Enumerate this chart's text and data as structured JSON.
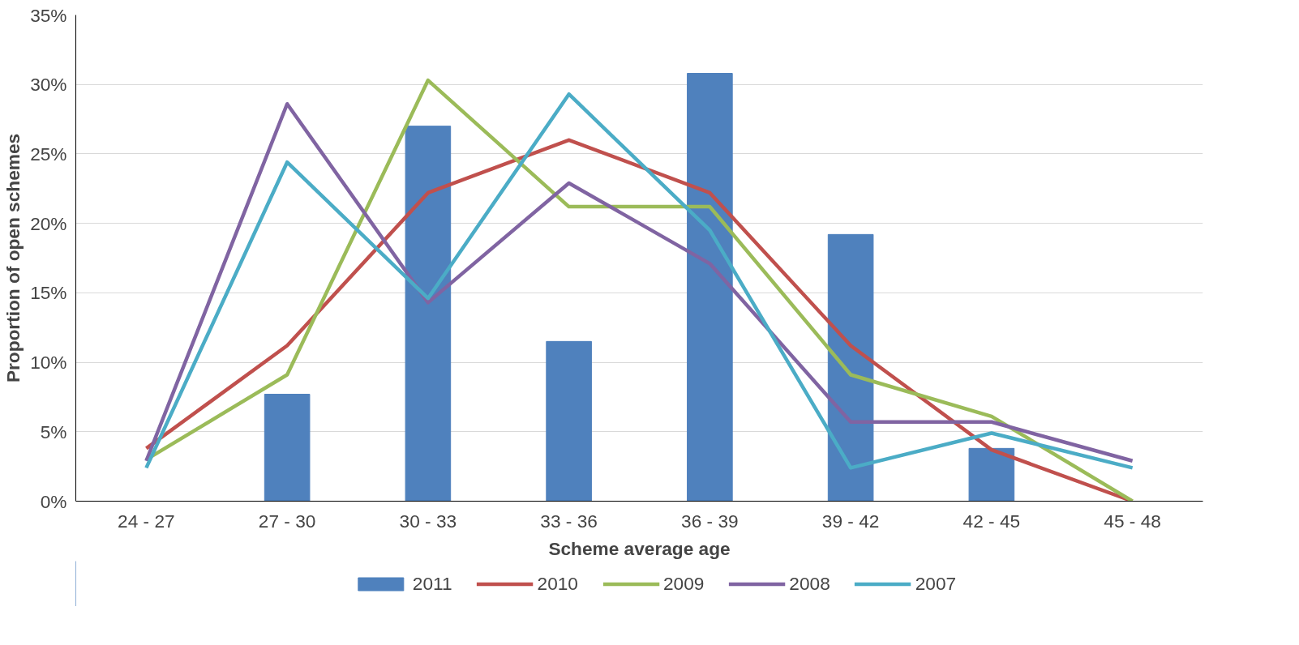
{
  "chart_data": {
    "type": "bar",
    "xlabel": "Scheme average age",
    "ylabel": "Proportion of open schemes",
    "categories": [
      "24 - 27",
      "27 - 30",
      "30 - 33",
      "33 - 36",
      "36 - 39",
      "39 - 42",
      "42 - 45",
      "45 - 48"
    ],
    "series": [
      {
        "name": "2011",
        "color": "#4f81bd",
        "values": [
          0,
          7.7,
          27.0,
          11.5,
          30.8,
          19.2,
          3.8,
          0
        ]
      },
      {
        "name": "2010",
        "type": "line",
        "color": "#c0504d",
        "values": [
          3.8,
          11.2,
          22.2,
          26.0,
          22.2,
          11.2,
          3.7,
          0
        ]
      },
      {
        "name": "2009",
        "type": "line",
        "color": "#9bbb59",
        "values": [
          3.0,
          9.1,
          30.3,
          21.2,
          21.2,
          9.1,
          6.1,
          0
        ]
      },
      {
        "name": "2008",
        "type": "line",
        "color": "#8064a2",
        "values": [
          2.9,
          28.6,
          14.3,
          22.9,
          17.1,
          5.7,
          5.7,
          2.9
        ]
      },
      {
        "name": "2007",
        "type": "line",
        "color": "#4bacc6",
        "values": [
          2.4,
          24.4,
          14.6,
          29.3,
          19.5,
          2.4,
          4.9,
          2.4
        ]
      }
    ],
    "ylim": [
      0,
      35
    ],
    "yticks": [
      {
        "value": 0,
        "label": "0%"
      },
      {
        "value": 5,
        "label": "5%"
      },
      {
        "value": 10,
        "label": "10%"
      },
      {
        "value": 15,
        "label": "15%"
      },
      {
        "value": 20,
        "label": "20%"
      },
      {
        "value": 25,
        "label": "25%"
      },
      {
        "value": 30,
        "label": "30%"
      },
      {
        "value": 35,
        "label": "35%"
      }
    ],
    "grid": "y",
    "legend": "bottom",
    "marker": "none",
    "line_style": "solid"
  }
}
